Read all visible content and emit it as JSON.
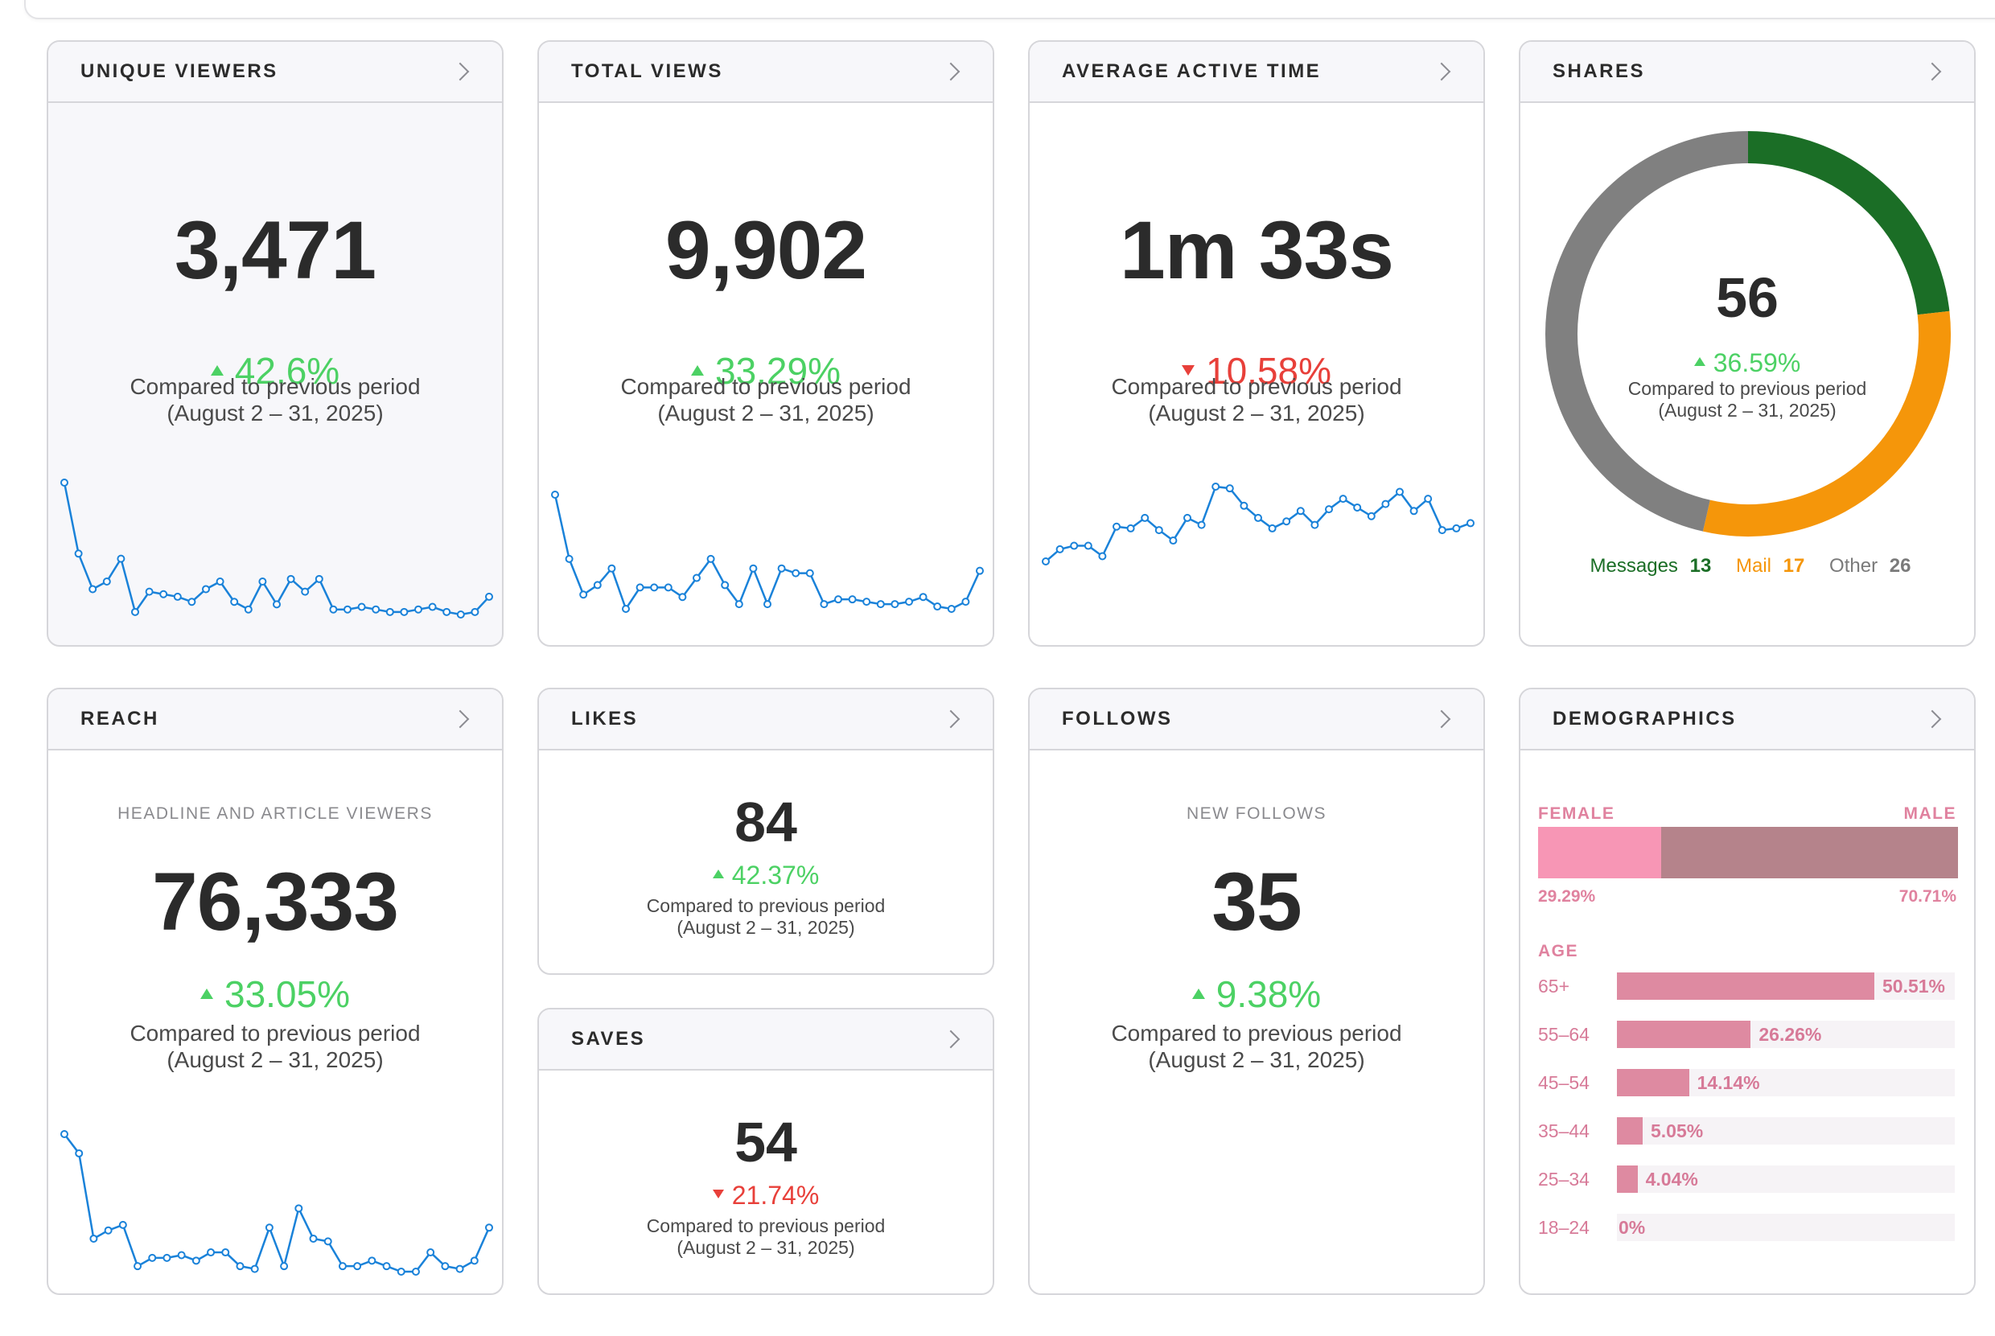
{
  "colors": {
    "up": "#4cd164",
    "down": "#e8403a",
    "spark": "#1a82d9",
    "messages": "#1b6e26",
    "mail": "#f5960a",
    "other": "#808080",
    "female": "#f796b5",
    "male": "#b5838b",
    "age_bar": "#de8aa1"
  },
  "compare": {
    "line1": "Compared to previous period",
    "line2": "(August 2 – 31, 2025)"
  },
  "unique_viewers": {
    "title": "UNIQUE VIEWERS",
    "value": "3,471",
    "change": "42.6%",
    "direction": "up",
    "trend": [
      52,
      24,
      10,
      13,
      22,
      1,
      9,
      8,
      7,
      5,
      10,
      13,
      5,
      2,
      13,
      4,
      14,
      9,
      14,
      2,
      2,
      3,
      2,
      1,
      1,
      2,
      3,
      1,
      0,
      1,
      7
    ]
  },
  "total_views": {
    "title": "TOTAL VIEWS",
    "value": "9,902",
    "change": "33.29%",
    "direction": "up",
    "trend": [
      50,
      23,
      8,
      12,
      19,
      2,
      11,
      11,
      11,
      7,
      15,
      23,
      12,
      4,
      19,
      4,
      19,
      17,
      17,
      4,
      6,
      6,
      5,
      4,
      4,
      5,
      7,
      3,
      2,
      5,
      18
    ]
  },
  "average_active_time": {
    "title": "AVERAGE ACTIVE TIME",
    "value": "1m 33s",
    "change": "10.58%",
    "direction": "down",
    "trend": [
      2,
      9,
      11,
      11,
      5,
      22,
      21,
      27,
      20,
      14,
      27,
      23,
      45,
      44,
      34,
      27,
      21,
      25,
      31,
      23,
      32,
      38,
      33,
      28,
      35,
      42,
      31,
      38,
      20,
      21,
      24
    ]
  },
  "shares": {
    "title": "SHARES",
    "value": "56",
    "change": "36.59%",
    "direction": "up",
    "legend": [
      {
        "name": "Messages",
        "value": 13
      },
      {
        "name": "Mail",
        "value": 17
      },
      {
        "name": "Other",
        "value": 26
      }
    ]
  },
  "reach": {
    "title": "REACH",
    "subtitle": "HEADLINE AND ARTICLE VIEWERS",
    "value": "76,333",
    "change": "33.05%",
    "direction": "up",
    "trend": [
      50,
      43,
      12,
      15,
      17,
      2,
      5,
      5,
      6,
      4,
      7,
      7,
      2,
      1,
      16,
      2,
      23,
      12,
      11,
      2,
      2,
      4,
      2,
      0,
      0,
      7,
      2,
      1,
      4,
      16
    ]
  },
  "likes": {
    "title": "LIKES",
    "value": "84",
    "change": "42.37%",
    "direction": "up"
  },
  "saves": {
    "title": "SAVES",
    "value": "54",
    "change": "21.74%",
    "direction": "down"
  },
  "follows": {
    "title": "FOLLOWS",
    "subtitle": "NEW FOLLOWS",
    "value": "35",
    "change": "9.38%",
    "direction": "up"
  },
  "demographics": {
    "title": "DEMOGRAPHICS",
    "female_label": "FEMALE",
    "male_label": "MALE",
    "female_pct": "29.29%",
    "male_pct": "70.71%",
    "female_value": 29.29,
    "male_value": 70.71,
    "age_label": "AGE",
    "ages": [
      {
        "range": "65+",
        "pct": "50.51%",
        "value": 50.51
      },
      {
        "range": "55–64",
        "pct": "26.26%",
        "value": 26.26
      },
      {
        "range": "45–54",
        "pct": "14.14%",
        "value": 14.14
      },
      {
        "range": "35–44",
        "pct": "5.05%",
        "value": 5.05
      },
      {
        "range": "25–34",
        "pct": "4.04%",
        "value": 4.04
      },
      {
        "range": "18–24",
        "pct": "0%",
        "value": 0
      }
    ]
  }
}
